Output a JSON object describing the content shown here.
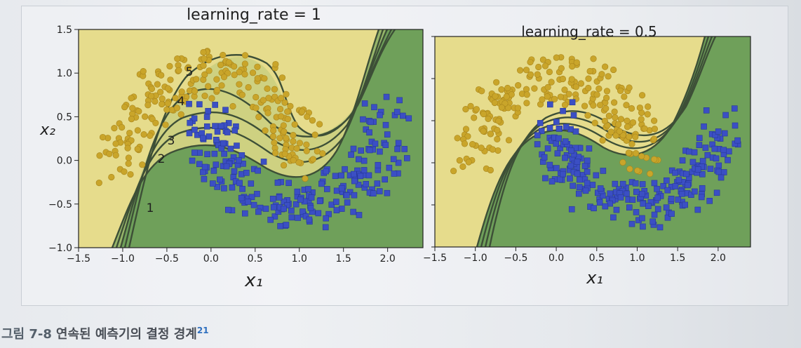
{
  "figure": {
    "caption_number": "그림 7-8",
    "caption_text": "연속된 예측기의 결정 경계",
    "footnote_mark": "21"
  },
  "chart_data": [
    {
      "type": "scatter",
      "title": "learning_rate = 1",
      "xlabel": "x₁",
      "ylabel": "x₂",
      "xlim": [
        -1.5,
        2.4
      ],
      "ylim": [
        -1.0,
        1.5
      ],
      "x_ticks": [
        "−1.5",
        "−1.0",
        "−0.5",
        "0.0",
        "0.5",
        "1.0",
        "1.5",
        "2.0"
      ],
      "y_ticks": [
        "−1.0",
        "−0.5",
        "0.0",
        "0.5",
        "1.0",
        "1.5"
      ],
      "boundary_labels": [
        "1",
        "2",
        "3",
        "4",
        "5"
      ],
      "classes": [
        {
          "name": "circles",
          "color": "#c9a52a"
        },
        {
          "name": "squares",
          "color": "#3b4fc4"
        }
      ],
      "region_colors": {
        "upper": "#e6dc8c",
        "lower": "#6fa05a"
      }
    },
    {
      "type": "scatter",
      "title": "learning_rate = 0.5",
      "xlabel": "x₁",
      "ylabel": "",
      "xlim": [
        -1.5,
        2.4
      ],
      "ylim": [
        -1.0,
        1.5
      ],
      "x_ticks": [
        "−1.5",
        "−1.0",
        "−0.5",
        "0.0",
        "0.5",
        "1.0",
        "1.5",
        "2.0"
      ],
      "y_ticks": [],
      "classes": [
        {
          "name": "circles",
          "color": "#c9a52a"
        },
        {
          "name": "squares",
          "color": "#3b4fc4"
        }
      ],
      "region_colors": {
        "upper": "#e6dc8c",
        "lower": "#6fa05a"
      }
    }
  ]
}
